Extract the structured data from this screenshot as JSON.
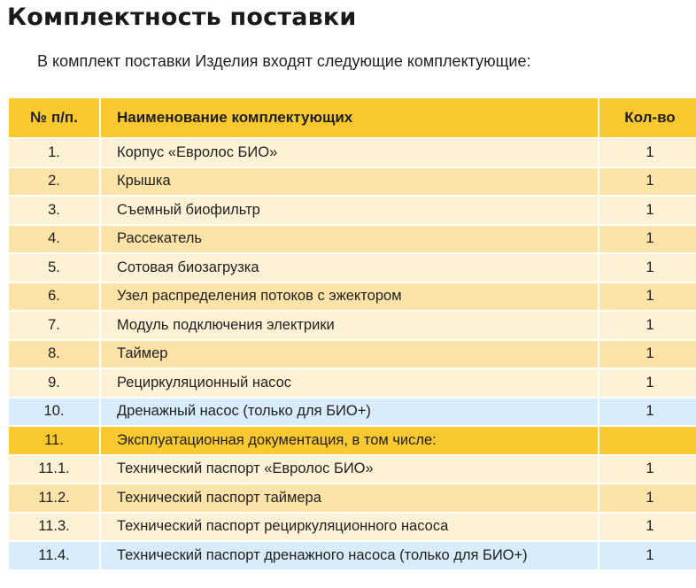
{
  "title": "Комплектность поставки",
  "intro": "В комплект поставки Изделия входят следующие комплектующие:",
  "table": {
    "headers": {
      "num": "№ п/п.",
      "name": "Наименование комплектующих",
      "qty": "Кол-во"
    },
    "colors": {
      "header": "#f9c92f",
      "row_light": "#fdf2d6",
      "row_dark": "#fce4a8",
      "row_blue": "#d8ecf9",
      "row_orange": "#f9c92f"
    },
    "rows": [
      {
        "num": "1.",
        "name": "Корпус «Евролос БИО»",
        "qty": "1",
        "style": "odd"
      },
      {
        "num": "2.",
        "name": "Крышка",
        "qty": "1",
        "style": "even"
      },
      {
        "num": "3.",
        "name": "Съемный биофильтр",
        "qty": "1",
        "style": "odd"
      },
      {
        "num": "4.",
        "name": "Рассекатель",
        "qty": "1",
        "style": "even"
      },
      {
        "num": "5.",
        "name": "Сотовая биозагрузка",
        "qty": "1",
        "style": "odd"
      },
      {
        "num": "6.",
        "name": "Узел распределения потоков с эжектором",
        "qty": "1",
        "style": "even"
      },
      {
        "num": "7.",
        "name": "Модуль подключения электрики",
        "qty": "1",
        "style": "odd"
      },
      {
        "num": "8.",
        "name": "Таймер",
        "qty": "1",
        "style": "even"
      },
      {
        "num": "9.",
        "name": "Рециркуляционный насос",
        "qty": "1",
        "style": "odd"
      },
      {
        "num": "10.",
        "name": "Дренажный насос (только для БИО+)",
        "qty": "1",
        "style": "blue"
      },
      {
        "num": "11.",
        "name": "Эксплуатационная документация, в том числе:",
        "qty": "",
        "style": "orange"
      },
      {
        "num": "11.1.",
        "name": "Технический паспорт «Евролос БИО»",
        "qty": "1",
        "style": "odd"
      },
      {
        "num": "11.2.",
        "name": "Технический паспорт таймера",
        "qty": "1",
        "style": "even"
      },
      {
        "num": "11.3.",
        "name": "Технический паспорт рециркуляционного насоса",
        "qty": "1",
        "style": "odd"
      },
      {
        "num": "11.4.",
        "name": "Технический паспорт дренажного насоса (только для БИО+)",
        "qty": "1",
        "style": "blue"
      }
    ]
  }
}
